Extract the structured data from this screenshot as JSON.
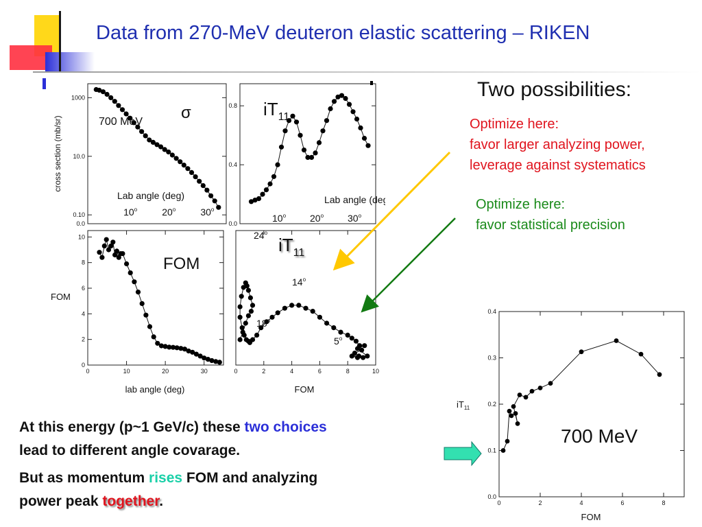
{
  "slide": {
    "title": "Data from 270-MeV deuteron elastic scattering – RIKEN",
    "two_possibilities": "Two possibilities:",
    "red_lines": [
      "Optimize here:",
      "favor larger analyzing power,",
      "leverage against systematics"
    ],
    "green_lines": [
      "Optimize here:",
      "favor statistical precision"
    ],
    "bottom_line1_a": "At this energy (p~1 GeV/c) these ",
    "bottom_line1_b": "two choices",
    "bottom_line2": "lead to different angle covarage.",
    "bottom_line3_a": "But as momentum ",
    "bottom_line3_b": "rises",
    "bottom_line3_c": " FOM and analyzing",
    "bottom_line4_a": "power peak ",
    "bottom_line4_b": "together",
    "bottom_line4_c": ".",
    "colors": {
      "title": "#1f2fb0",
      "red": "#e0141e",
      "green": "#1a8a1a",
      "yellow_arrow": "#ffc800",
      "green_arrow": "#127a12",
      "teal": "#1ad0a8",
      "blue": "#2b2fd8"
    }
  },
  "chart_data": [
    {
      "type": "line",
      "panel": "sigma",
      "ylabel": "cross section (mb/sr)",
      "xlabel": "Lab angle (deg)",
      "ylog": true,
      "yticks": [
        {
          "value": 0.1,
          "label": "0.10"
        },
        {
          "value": 10.0,
          "label": "10.0"
        },
        {
          "value": 1000,
          "label": "1000"
        }
      ],
      "y_bottom_label": "0.0",
      "ylim": [
        0.05,
        3000
      ],
      "xlim": [
        0,
        36
      ],
      "xtick_annotations": [
        {
          "value": 10,
          "label": "10",
          "sup": "o"
        },
        {
          "value": 20,
          "label": "20",
          "sup": "o"
        },
        {
          "value": 30,
          "label": "30",
          "sup": "o"
        }
      ],
      "annotations": [
        "700 MeV",
        "σ"
      ],
      "x": [
        2.2,
        3,
        4,
        5,
        6,
        7,
        8,
        9,
        10,
        11,
        12,
        13,
        14,
        15,
        16,
        17,
        18,
        19,
        20,
        21,
        22,
        23,
        24,
        25,
        26,
        27,
        28,
        29,
        30,
        31,
        32,
        33,
        34
      ],
      "y": [
        1900,
        1800,
        1600,
        1300,
        1000,
        750,
        540,
        390,
        280,
        200,
        140,
        100,
        70,
        50,
        36,
        30,
        25,
        21,
        17,
        14,
        11,
        8.5,
        6.5,
        5,
        3.8,
        2.8,
        2,
        1.4,
        1,
        0.7,
        0.45,
        0.3,
        0.18
      ]
    },
    {
      "type": "line",
      "panel": "iT11 vs angle",
      "title": "iT",
      "title_sub": "11",
      "xlabel": "Lab angle (deg)",
      "yticks": [
        {
          "value": 0.0,
          "label": "0.0"
        },
        {
          "value": 0.4,
          "label": "0.4"
        },
        {
          "value": 0.8,
          "label": "0.8"
        }
      ],
      "ylim": [
        0,
        0.95
      ],
      "xlim": [
        0,
        36
      ],
      "xtick_annotations": [
        {
          "value": 10,
          "label": "10",
          "sup": "o"
        },
        {
          "value": 20,
          "label": "20",
          "sup": "o"
        },
        {
          "value": 30,
          "label": "30",
          "sup": "o"
        }
      ],
      "x": [
        3,
        4,
        5,
        6,
        7,
        8,
        9,
        10,
        11,
        12,
        13,
        14,
        15,
        16,
        17,
        18,
        19,
        20,
        21,
        22,
        23,
        24,
        25,
        26,
        27,
        28,
        29,
        30,
        31,
        32,
        33,
        34
      ],
      "y": [
        0.15,
        0.16,
        0.17,
        0.2,
        0.23,
        0.27,
        0.32,
        0.4,
        0.52,
        0.63,
        0.7,
        0.73,
        0.69,
        0.6,
        0.5,
        0.45,
        0.45,
        0.48,
        0.55,
        0.63,
        0.7,
        0.78,
        0.83,
        0.86,
        0.87,
        0.85,
        0.81,
        0.76,
        0.71,
        0.65,
        0.58,
        0.53
      ]
    },
    {
      "type": "line",
      "panel": "FOM vs angle",
      "xlabel": "lab angle  (deg)",
      "ylabel": "FOM",
      "annotations": [
        "FOM"
      ],
      "xlim": [
        0,
        35
      ],
      "ylim": [
        0,
        10.5
      ],
      "xticks": [
        0,
        10,
        20,
        30
      ],
      "yticks": [
        0,
        2,
        4,
        6,
        8,
        10
      ],
      "x": [
        3,
        3.7,
        4.3,
        4.8,
        5.4,
        6,
        6.5,
        7,
        7.5,
        8,
        8.5,
        9,
        10,
        11,
        12,
        13,
        14,
        15,
        16,
        17,
        18,
        19,
        20,
        21,
        22,
        23,
        24,
        25,
        26,
        27,
        28,
        29,
        30,
        31,
        32,
        33,
        34
      ],
      "y": [
        8.8,
        8.4,
        9.3,
        9.8,
        9.0,
        9.3,
        9.6,
        8.6,
        8.9,
        8.4,
        8.7,
        8.7,
        7.9,
        7.2,
        6.5,
        5.7,
        4.8,
        3.9,
        3.0,
        2.2,
        1.7,
        1.5,
        1.45,
        1.4,
        1.38,
        1.35,
        1.3,
        1.25,
        1.1,
        1.0,
        0.85,
        0.7,
        0.55,
        0.45,
        0.35,
        0.28,
        0.22
      ]
    },
    {
      "type": "line",
      "panel": "iT11 vs FOM",
      "title": "iT",
      "title_sub": "11",
      "xlabel": "FOM",
      "xlim": [
        0,
        10
      ],
      "ylim": [
        0,
        0.9
      ],
      "xticks": [
        0,
        2,
        4,
        6,
        8,
        10
      ],
      "angle_annotations": [
        {
          "label": "24",
          "sup": "o"
        },
        {
          "label": "14",
          "sup": "o"
        },
        {
          "label": "18",
          "sup": "o"
        },
        {
          "label": "5",
          "sup": "o"
        }
      ],
      "x": [
        0.3,
        0.5,
        0.7,
        0.9,
        1.1,
        1.2,
        1.05,
        0.9,
        0.8,
        0.7,
        0.55,
        0.4,
        0.3,
        0.3,
        0.45,
        0.6,
        0.75,
        0.9,
        1.0,
        1.2,
        1.5,
        1.8,
        2.2,
        2.6,
        3,
        3.5,
        4,
        4.5,
        5,
        5.5,
        6,
        6.5,
        7,
        7.5,
        8,
        8.3,
        8.6,
        8.85,
        9,
        8.5,
        8.8,
        8.3,
        8.7,
        9.1,
        9.4,
        8.7,
        9.2
      ],
      "y": [
        0.17,
        0.22,
        0.28,
        0.33,
        0.36,
        0.4,
        0.45,
        0.5,
        0.53,
        0.55,
        0.52,
        0.46,
        0.39,
        0.32,
        0.25,
        0.2,
        0.17,
        0.16,
        0.15,
        0.17,
        0.2,
        0.25,
        0.29,
        0.32,
        0.35,
        0.38,
        0.4,
        0.4,
        0.38,
        0.36,
        0.32,
        0.28,
        0.25,
        0.22,
        0.2,
        0.18,
        0.16,
        0.13,
        0.1,
        0.08,
        0.06,
        0.06,
        0.05,
        0.05,
        0.06,
        0.11,
        0.13
      ]
    },
    {
      "type": "line",
      "panel": "iT11 vs FOM 700 MeV",
      "xlabel": "FOM",
      "ylabel": "iT",
      "ylabel_sub": "11",
      "annotations": [
        "700 MeV"
      ],
      "xlim": [
        0,
        9
      ],
      "ylim": [
        0,
        0.4
      ],
      "xticks": [
        0,
        2,
        4,
        6,
        8
      ],
      "yticks": [
        {
          "value": 0.0,
          "label": "0.0"
        },
        {
          "value": 0.1,
          "label": "0.1"
        },
        {
          "value": 0.2,
          "label": "0.2"
        },
        {
          "value": 0.3,
          "label": "0.3"
        },
        {
          "value": 0.4,
          "label": "0.4"
        }
      ],
      "x": [
        0.2,
        0.4,
        0.5,
        0.6,
        0.8,
        0.9,
        0.7,
        1.0,
        1.3,
        1.6,
        2.0,
        2.5,
        4.0,
        5.7,
        6.9,
        7.8
      ],
      "y": [
        0.1,
        0.12,
        0.185,
        0.175,
        0.18,
        0.158,
        0.195,
        0.22,
        0.215,
        0.228,
        0.235,
        0.245,
        0.313,
        0.337,
        0.308,
        0.264
      ]
    }
  ]
}
